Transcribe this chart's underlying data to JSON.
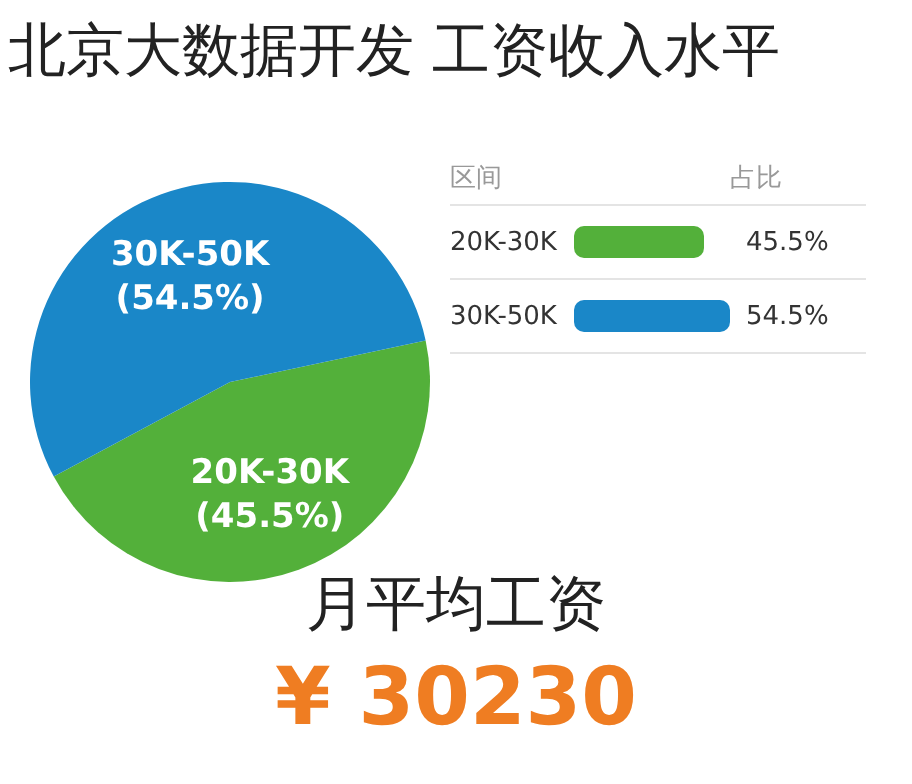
{
  "chart_data": {
    "type": "pie",
    "title": "北京大数据开发 工资收入水平",
    "categories": [
      "20K-30K",
      "30K-50K"
    ],
    "values": [
      45.5,
      54.5
    ],
    "colors": [
      "#53b03a",
      "#1a87c8"
    ],
    "value_labels": [
      "(45.5%)",
      "(54.5%)"
    ],
    "annotations": [
      "区间",
      "占比",
      "45.5%",
      "54.5%",
      "月平均工资",
      "¥ 30230"
    ]
  }
}
